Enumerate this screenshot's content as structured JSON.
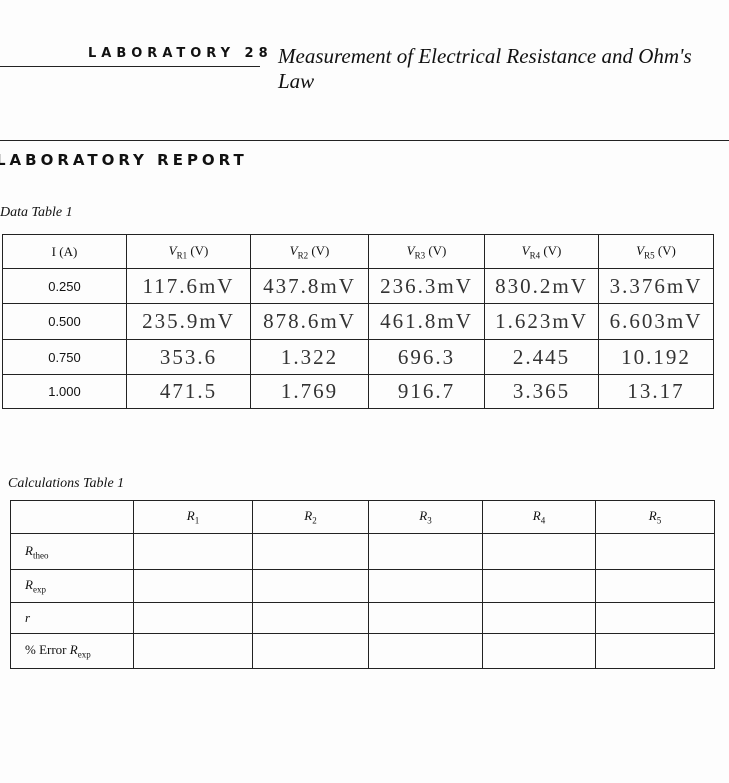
{
  "header": {
    "lab_number": "LABORATORY 28",
    "title": "Measurement of Electrical Resistance and Ohm's Law"
  },
  "report_title": "LABORATORY REPORT",
  "data_table": {
    "caption": "Data Table 1",
    "headers": [
      {
        "text": "I (A)"
      },
      {
        "symbol": "V",
        "sub": "R1",
        "unit": "(V)"
      },
      {
        "symbol": "V",
        "sub": "R2",
        "unit": "(V)"
      },
      {
        "symbol": "V",
        "sub": "R3",
        "unit": "(V)"
      },
      {
        "symbol": "V",
        "sub": "R4",
        "unit": "(V)"
      },
      {
        "symbol": "V",
        "sub": "R5",
        "unit": "(V)"
      }
    ],
    "rows": [
      [
        "0.250",
        "117.6mV",
        "437.8mV",
        "236.3mV",
        "830.2mV",
        "3.376mV"
      ],
      [
        "0.500",
        "235.9mV",
        "878.6mV",
        "461.8mV",
        "1.623mV",
        "6.603mV"
      ],
      [
        "0.750",
        "353.6",
        "1.322",
        "696.3",
        "2.445",
        "10.192"
      ],
      [
        "1.000",
        "471.5",
        "1.769",
        "916.7",
        "3.365",
        "13.17"
      ]
    ]
  },
  "calc_table": {
    "caption": "Calculations Table 1",
    "headers": [
      {
        "symbol": "R",
        "sub": "1"
      },
      {
        "symbol": "R",
        "sub": "2"
      },
      {
        "symbol": "R",
        "sub": "3"
      },
      {
        "symbol": "R",
        "sub": "4"
      },
      {
        "symbol": "R",
        "sub": "5"
      }
    ],
    "rows": [
      {
        "symbol": "R",
        "sub": "theo"
      },
      {
        "symbol": "R",
        "sub": "exp"
      },
      {
        "symbol": "r"
      },
      {
        "prefix": "% Error",
        "symbol": "R",
        "sub": "exp"
      }
    ]
  }
}
